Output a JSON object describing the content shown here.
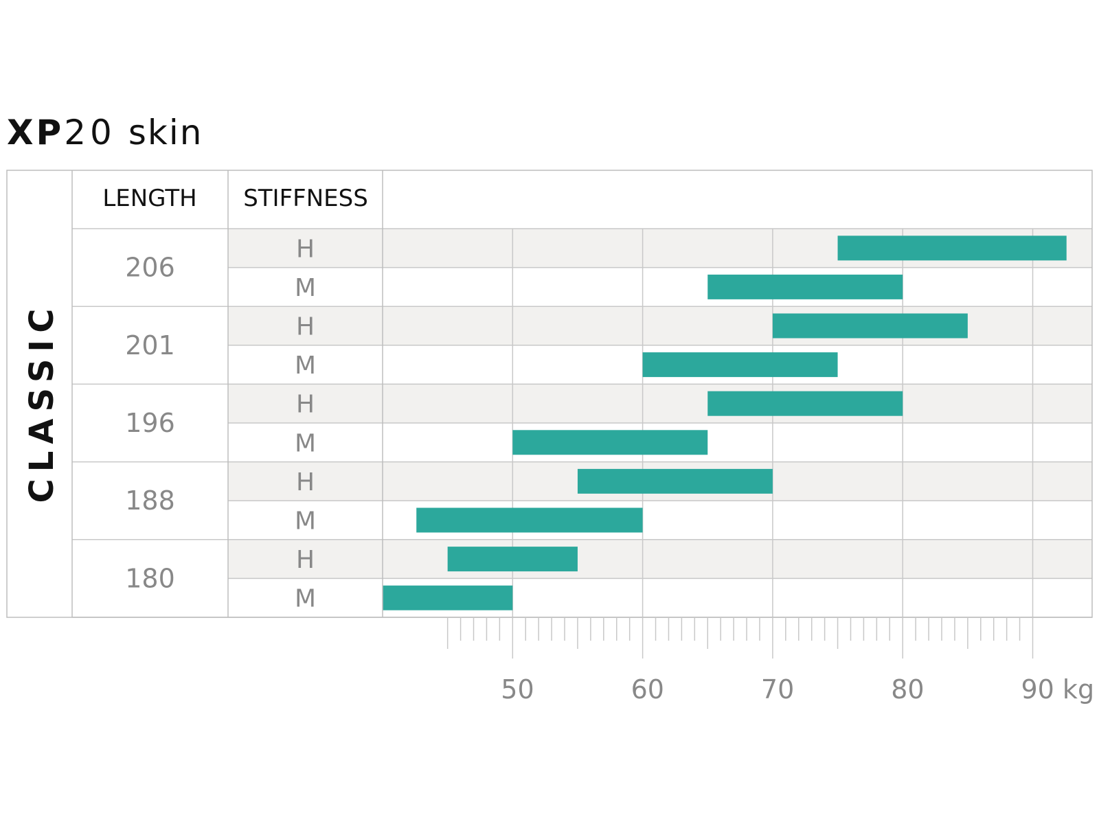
{
  "title": {
    "bold": "XP",
    "number": "20",
    "sub": "skin"
  },
  "group_label": "CLASSIC",
  "headers": {
    "length": "LENGTH",
    "stiffness": "STIFFNESS"
  },
  "colors": {
    "bar": "#2ca89c",
    "shaded_row": "#f2f1ef",
    "grid": "#c8c8c8",
    "border": "#bdbdbd"
  },
  "chart_data": {
    "type": "bar",
    "orientation": "horizontal-range",
    "xlabel": "",
    "x_unit": "kg",
    "xlim": [
      40,
      95
    ],
    "xticks": [
      50,
      60,
      70,
      80,
      90
    ],
    "tick_labels": [
      "50",
      "60",
      "70",
      "80",
      "90 kg"
    ],
    "minor_ticks_from": 45,
    "grid": true,
    "rows": [
      {
        "length": "206",
        "stiffness": "H",
        "from": 75,
        "to": 92.6
      },
      {
        "length": "206",
        "stiffness": "M",
        "from": 65,
        "to": 80
      },
      {
        "length": "201",
        "stiffness": "H",
        "from": 70,
        "to": 85
      },
      {
        "length": "201",
        "stiffness": "M",
        "from": 60,
        "to": 75
      },
      {
        "length": "196",
        "stiffness": "H",
        "from": 65,
        "to": 80
      },
      {
        "length": "196",
        "stiffness": "M",
        "from": 50,
        "to": 65
      },
      {
        "length": "188",
        "stiffness": "H",
        "from": 55,
        "to": 70
      },
      {
        "length": "188",
        "stiffness": "M",
        "from": 42.6,
        "to": 60
      },
      {
        "length": "180",
        "stiffness": "H",
        "from": 45,
        "to": 55
      },
      {
        "length": "180",
        "stiffness": "M",
        "from": 40,
        "to": 50
      }
    ]
  }
}
